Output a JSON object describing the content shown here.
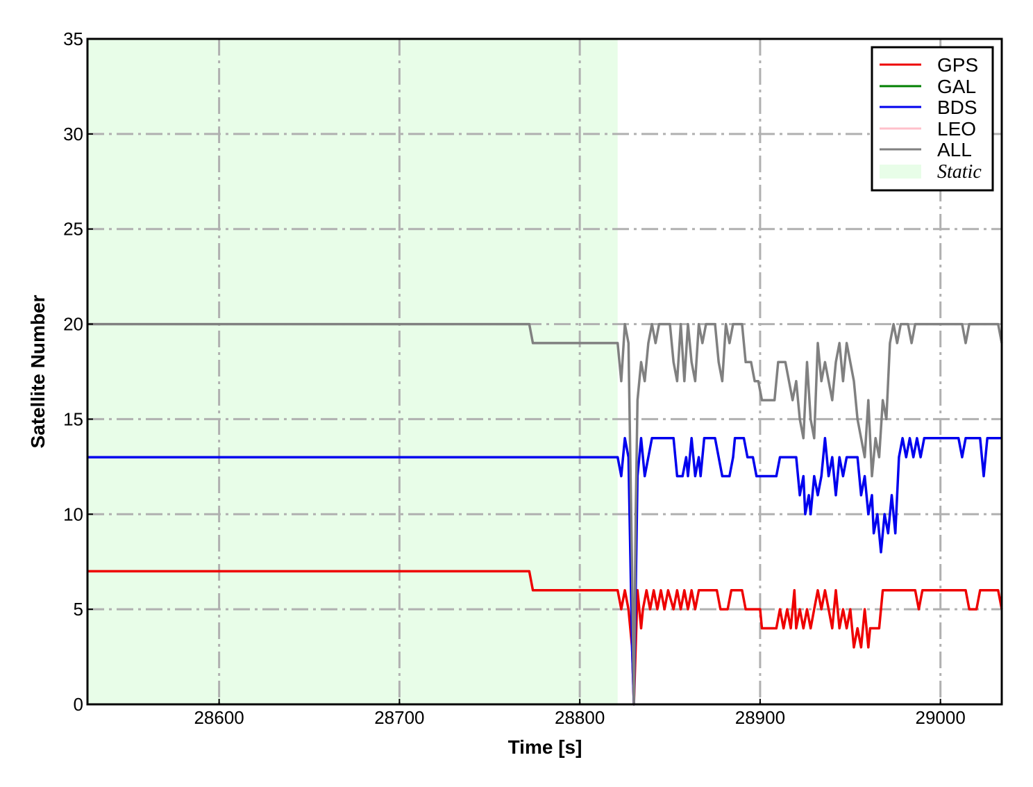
{
  "chart_data": {
    "type": "line",
    "xlabel": "Time [s]",
    "ylabel": "Satellite Number",
    "xlim": [
      28527,
      29034
    ],
    "ylim": [
      0,
      35
    ],
    "x_ticks": [
      28600,
      28700,
      28800,
      28900,
      29000
    ],
    "y_ticks": [
      0,
      5,
      10,
      15,
      20,
      25,
      30,
      35
    ],
    "grid": true,
    "legend_position": "top-right",
    "shaded_region": {
      "name": "Static",
      "x_start": 28527,
      "x_end": 28821,
      "color": "#e8fde8"
    },
    "series": [
      {
        "name": "GPS",
        "color": "#ee0000",
        "points": [
          [
            28527,
            7
          ],
          [
            28772,
            7
          ],
          [
            28774,
            6
          ],
          [
            28821,
            6
          ],
          [
            28823,
            5
          ],
          [
            28825,
            6
          ],
          [
            28827,
            5
          ],
          [
            28829,
            3
          ],
          [
            28830,
            0
          ],
          [
            28831,
            3
          ],
          [
            28832,
            6
          ],
          [
            28833,
            5
          ],
          [
            28834,
            4
          ],
          [
            28835,
            5
          ],
          [
            28837,
            6
          ],
          [
            28839,
            5
          ],
          [
            28841,
            6
          ],
          [
            28843,
            5
          ],
          [
            28845,
            6
          ],
          [
            28847,
            5
          ],
          [
            28849,
            6
          ],
          [
            28852,
            5
          ],
          [
            28854,
            6
          ],
          [
            28856,
            5
          ],
          [
            28858,
            6
          ],
          [
            28860,
            5
          ],
          [
            28862,
            6
          ],
          [
            28864,
            5
          ],
          [
            28866,
            6
          ],
          [
            28876,
            6
          ],
          [
            28878,
            5
          ],
          [
            28882,
            5
          ],
          [
            28884,
            6
          ],
          [
            28890,
            6
          ],
          [
            28892,
            5
          ],
          [
            28900,
            5
          ],
          [
            28901,
            4
          ],
          [
            28909,
            4
          ],
          [
            28911,
            5
          ],
          [
            28913,
            4
          ],
          [
            28915,
            5
          ],
          [
            28917,
            4
          ],
          [
            28919,
            6
          ],
          [
            28920,
            4
          ],
          [
            28922,
            5
          ],
          [
            28924,
            4
          ],
          [
            28926,
            5
          ],
          [
            28928,
            4
          ],
          [
            28930,
            5
          ],
          [
            28932,
            6
          ],
          [
            28934,
            5
          ],
          [
            28936,
            6
          ],
          [
            28938,
            5
          ],
          [
            28940,
            4
          ],
          [
            28942,
            6
          ],
          [
            28944,
            4
          ],
          [
            28946,
            5
          ],
          [
            28948,
            4
          ],
          [
            28950,
            5
          ],
          [
            28952,
            3
          ],
          [
            28954,
            4
          ],
          [
            28956,
            3
          ],
          [
            28958,
            5
          ],
          [
            28960,
            3
          ],
          [
            28961,
            4
          ],
          [
            28966,
            4
          ],
          [
            28968,
            6
          ],
          [
            28986,
            6
          ],
          [
            28988,
            5
          ],
          [
            28990,
            6
          ],
          [
            29014,
            6
          ],
          [
            29016,
            5
          ],
          [
            29020,
            5
          ],
          [
            29022,
            6
          ],
          [
            29032,
            6
          ],
          [
            29034,
            5
          ]
        ]
      },
      {
        "name": "GAL",
        "color": "#007f00",
        "points": []
      },
      {
        "name": "BDS",
        "color": "#0000ee",
        "points": [
          [
            28527,
            13
          ],
          [
            28821,
            13
          ],
          [
            28823,
            12
          ],
          [
            28825,
            14
          ],
          [
            28827,
            13
          ],
          [
            28829,
            3
          ],
          [
            28830,
            0
          ],
          [
            28831,
            6
          ],
          [
            28832,
            12
          ],
          [
            28834,
            14
          ],
          [
            28836,
            12
          ],
          [
            28838,
            13
          ],
          [
            28840,
            14
          ],
          [
            28852,
            14
          ],
          [
            28854,
            12
          ],
          [
            28857,
            12
          ],
          [
            28859,
            13
          ],
          [
            28860,
            12
          ],
          [
            28862,
            14
          ],
          [
            28864,
            12
          ],
          [
            28866,
            13
          ],
          [
            28867,
            12
          ],
          [
            28869,
            14
          ],
          [
            28875,
            14
          ],
          [
            28877,
            13
          ],
          [
            28879,
            12
          ],
          [
            28883,
            12
          ],
          [
            28885,
            13
          ],
          [
            28886,
            14
          ],
          [
            28891,
            14
          ],
          [
            28893,
            13
          ],
          [
            28896,
            13
          ],
          [
            28898,
            12
          ],
          [
            28909,
            12
          ],
          [
            28911,
            13
          ],
          [
            28920,
            13
          ],
          [
            28922,
            11
          ],
          [
            28924,
            12
          ],
          [
            28925,
            10
          ],
          [
            28927,
            11
          ],
          [
            28928,
            10
          ],
          [
            28930,
            12
          ],
          [
            28932,
            11
          ],
          [
            28934,
            12
          ],
          [
            28936,
            14
          ],
          [
            28938,
            12
          ],
          [
            28940,
            13
          ],
          [
            28942,
            11
          ],
          [
            28944,
            13
          ],
          [
            28946,
            12
          ],
          [
            28948,
            13
          ],
          [
            28954,
            13
          ],
          [
            28956,
            11
          ],
          [
            28958,
            12
          ],
          [
            28960,
            10
          ],
          [
            28962,
            11
          ],
          [
            28963,
            9
          ],
          [
            28965,
            10
          ],
          [
            28967,
            8
          ],
          [
            28969,
            10
          ],
          [
            28971,
            9
          ],
          [
            28973,
            11
          ],
          [
            28975,
            9
          ],
          [
            28977,
            13
          ],
          [
            28979,
            14
          ],
          [
            28981,
            13
          ],
          [
            28983,
            14
          ],
          [
            28985,
            13
          ],
          [
            28987,
            14
          ],
          [
            28989,
            13
          ],
          [
            28991,
            14
          ],
          [
            29010,
            14
          ],
          [
            29012,
            13
          ],
          [
            29014,
            14
          ],
          [
            29022,
            14
          ],
          [
            29024,
            12
          ],
          [
            29026,
            14
          ],
          [
            29034,
            14
          ]
        ]
      },
      {
        "name": "LEO",
        "color": "#ffc0cb",
        "points": []
      },
      {
        "name": "ALL",
        "color": "#808080",
        "points": [
          [
            28527,
            20
          ],
          [
            28772,
            20
          ],
          [
            28774,
            19
          ],
          [
            28821,
            19
          ],
          [
            28823,
            17
          ],
          [
            28825,
            20
          ],
          [
            28827,
            19
          ],
          [
            28829,
            7
          ],
          [
            28830,
            0
          ],
          [
            28831,
            10
          ],
          [
            28832,
            16
          ],
          [
            28834,
            18
          ],
          [
            28836,
            17
          ],
          [
            28838,
            19
          ],
          [
            28840,
            20
          ],
          [
            28842,
            19
          ],
          [
            28844,
            20
          ],
          [
            28850,
            20
          ],
          [
            28852,
            18
          ],
          [
            28854,
            17
          ],
          [
            28856,
            20
          ],
          [
            28858,
            17
          ],
          [
            28860,
            20
          ],
          [
            28862,
            18
          ],
          [
            28864,
            17
          ],
          [
            28866,
            20
          ],
          [
            28868,
            19
          ],
          [
            28870,
            20
          ],
          [
            28875,
            20
          ],
          [
            28877,
            18
          ],
          [
            28879,
            17
          ],
          [
            28881,
            20
          ],
          [
            28883,
            19
          ],
          [
            28885,
            20
          ],
          [
            28890,
            20
          ],
          [
            28892,
            18
          ],
          [
            28895,
            18
          ],
          [
            28897,
            17
          ],
          [
            28899,
            17
          ],
          [
            28901,
            16
          ],
          [
            28908,
            16
          ],
          [
            28910,
            18
          ],
          [
            28914,
            18
          ],
          [
            28916,
            17
          ],
          [
            28918,
            16
          ],
          [
            28920,
            17
          ],
          [
            28922,
            15
          ],
          [
            28924,
            14
          ],
          [
            28926,
            18
          ],
          [
            28928,
            15
          ],
          [
            28930,
            14
          ],
          [
            28932,
            19
          ],
          [
            28934,
            17
          ],
          [
            28936,
            18
          ],
          [
            28938,
            17
          ],
          [
            28940,
            16
          ],
          [
            28942,
            18
          ],
          [
            28944,
            19
          ],
          [
            28946,
            17
          ],
          [
            28948,
            19
          ],
          [
            28950,
            18
          ],
          [
            28952,
            17
          ],
          [
            28954,
            15
          ],
          [
            28956,
            14
          ],
          [
            28958,
            13
          ],
          [
            28960,
            16
          ],
          [
            28962,
            12
          ],
          [
            28964,
            14
          ],
          [
            28966,
            13
          ],
          [
            28968,
            16
          ],
          [
            28970,
            15
          ],
          [
            28972,
            19
          ],
          [
            28974,
            20
          ],
          [
            28976,
            19
          ],
          [
            28978,
            20
          ],
          [
            28982,
            20
          ],
          [
            28984,
            19
          ],
          [
            28986,
            20
          ],
          [
            29012,
            20
          ],
          [
            29014,
            19
          ],
          [
            29016,
            20
          ],
          [
            29032,
            20
          ],
          [
            29034,
            19
          ]
        ]
      }
    ]
  }
}
